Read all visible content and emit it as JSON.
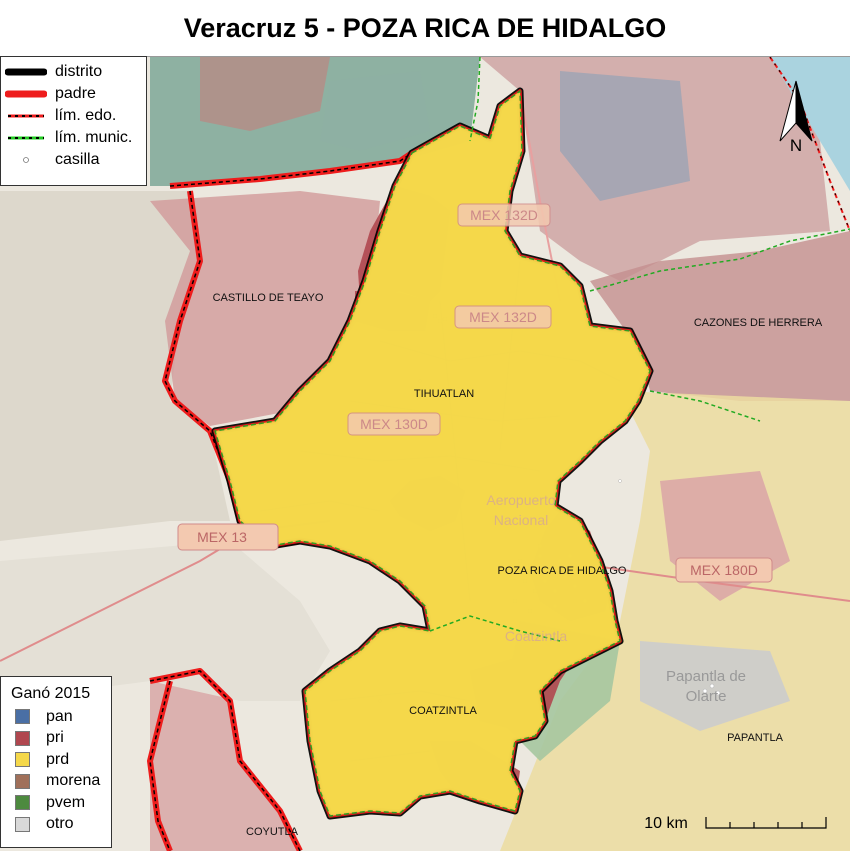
{
  "title": "Veracruz 5 - POZA RICA DE HIDALGO",
  "legend_lines": [
    {
      "label": "distrito",
      "style": "distrito"
    },
    {
      "label": "padre",
      "style": "padre"
    },
    {
      "label": "lím. edo.",
      "style": "edo"
    },
    {
      "label": "lím. munic.",
      "style": "munic"
    },
    {
      "label": "casilla",
      "style": "casilla"
    }
  ],
  "legend_parties": {
    "title": "Ganó 2015",
    "items": [
      {
        "label": "pan",
        "color": "#4a6fa5"
      },
      {
        "label": "pri",
        "color": "#b0474f"
      },
      {
        "label": "prd",
        "color": "#f5d84a"
      },
      {
        "label": "morena",
        "color": "#a0705a"
      },
      {
        "label": "pvem",
        "color": "#4d8a3f"
      },
      {
        "label": "otro",
        "color": "#d9d9d9"
      }
    ]
  },
  "places": {
    "castillo": "CASTILLO DE TEAYO",
    "cazones": "CAZONES DE HERRERA",
    "tihuatlan": "TIHUATLAN",
    "pozarica": "POZA RICA DE HIDALGO",
    "coatzintla": "COATZINTLA",
    "papantla": "PAPANTLA",
    "coyutla": "COYUTLA"
  },
  "roads": {
    "r1": "MEX 132D",
    "r2": "MEX 132D",
    "r3": "MEX 130D",
    "r4": "MEX 13",
    "r5": "MEX 180D"
  },
  "basemap_text": {
    "aeropuerto": "Aeropuerto",
    "nacional": "Nacional",
    "papantla_de": "Papantla de",
    "olarte": "Olarte",
    "coatzintla_town": "Coatzintla"
  },
  "north_label": "N",
  "scale_label": "10 km"
}
